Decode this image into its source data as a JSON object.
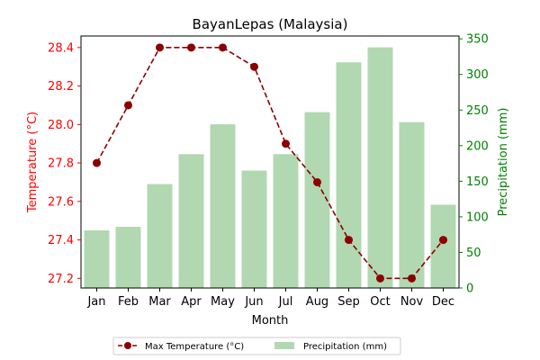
{
  "chart_data": {
    "type": "bar+line",
    "title": "BayanLepas (Malaysia)",
    "xlabel": "Month",
    "categories": [
      "Jan",
      "Feb",
      "Mar",
      "Apr",
      "May",
      "Jun",
      "Jul",
      "Aug",
      "Sep",
      "Oct",
      "Nov",
      "Dec"
    ],
    "left_axis": {
      "label": "Temperature (°C)",
      "color": "#ff0000",
      "ylim": [
        27.15,
        28.46
      ],
      "ticks": [
        27.2,
        27.4,
        27.6,
        27.8,
        28.0,
        28.2,
        28.4
      ],
      "tick_labels": [
        "27.2",
        "27.4",
        "27.6",
        "27.8",
        "28.0",
        "28.2",
        "28.4"
      ]
    },
    "right_axis": {
      "label": "Precipitation (mm)",
      "color": "#008000",
      "ylim": [
        0,
        354
      ],
      "ticks": [
        0,
        50,
        100,
        150,
        200,
        250,
        300,
        350
      ],
      "tick_labels": [
        "0",
        "50",
        "100",
        "150",
        "200",
        "250",
        "300",
        "350"
      ]
    },
    "series": [
      {
        "name": "Max Temperature (°C)",
        "kind": "line",
        "axis": "left",
        "color": "#8b0000",
        "line_style": "dashed",
        "marker": "circle",
        "values": [
          27.8,
          28.1,
          28.4,
          28.4,
          28.4,
          28.3,
          27.9,
          27.7,
          27.4,
          27.2,
          27.2,
          27.4
        ]
      },
      {
        "name": "Precipitation (mm)",
        "kind": "bar",
        "axis": "right",
        "color": "#b2d8b2",
        "values": [
          81,
          86,
          146,
          188,
          230,
          165,
          188,
          247,
          317,
          338,
          233,
          117
        ]
      }
    ],
    "legend": {
      "placement": "bottom-center",
      "columns": 2
    },
    "grid": false
  }
}
